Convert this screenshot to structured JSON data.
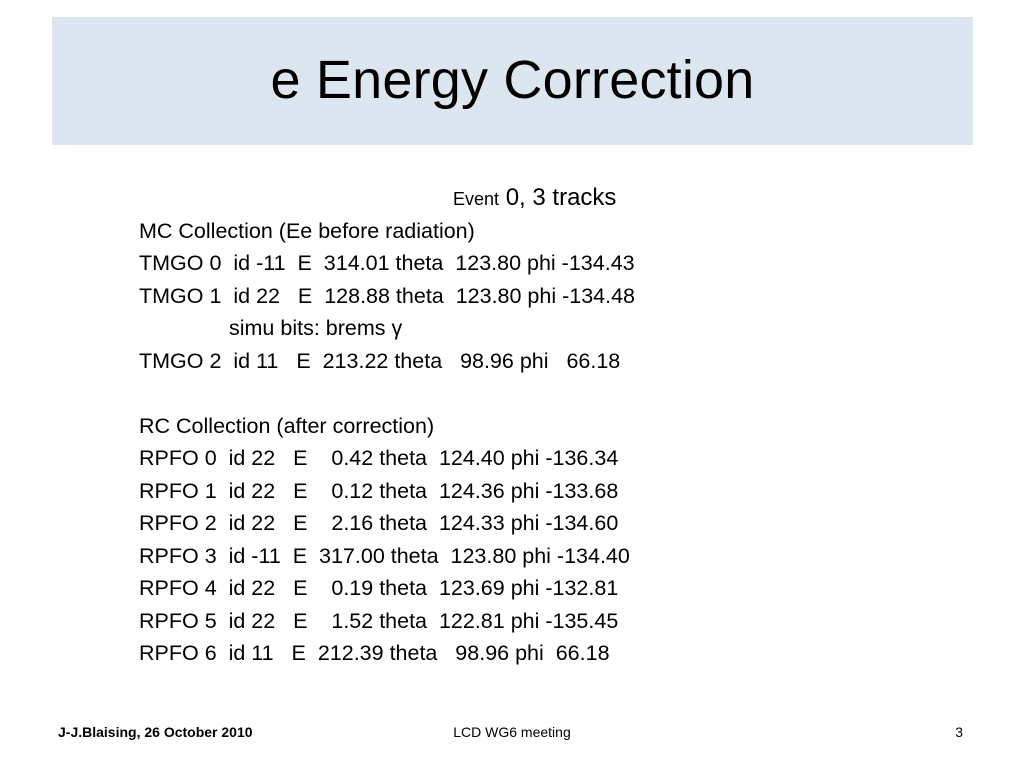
{
  "slide": {
    "title": "e Energy Correction",
    "event_prefix": "Event",
    "event_text": "0, 3 tracks",
    "mc_header": "MC Collection (Ee before radiation)",
    "mc_rows": [
      "TMGO 0  id -11  E  314.01 theta  123.80 phi -134.43",
      "TMGO 1  id 22   E  128.88 theta  123.80 phi -134.48",
      "simu bits: brems γ",
      "TMGO 2  id 11   E  213.22 theta   98.96 phi   66.18"
    ],
    "rc_header": "RC Collection (after correction)",
    "rc_rows": [
      "RPFO 0  id 22   E    0.42 theta  124.40 phi -136.34",
      "RPFO 1  id 22   E    0.12 theta  124.36 phi -133.68",
      "RPFO 2  id 22   E    2.16 theta  124.33 phi -134.60",
      "RPFO 3  id -11  E  317.00 theta  123.80 phi -134.40",
      "RPFO 4  id 22   E    0.19 theta  123.69 phi -132.81",
      "RPFO 5  id 22   E    1.52 theta  122.81 phi -135.45",
      "RPFO 6  id 11   E  212.39 theta   98.96 phi  66.18"
    ]
  },
  "footer": {
    "author_date": "J-J.Blaising, 26 October 2010",
    "meeting": "LCD WG6 meeting",
    "page_number": "3"
  },
  "colors": {
    "title_band": "#dce6f0",
    "text": "#000000",
    "background": "#ffffff"
  }
}
